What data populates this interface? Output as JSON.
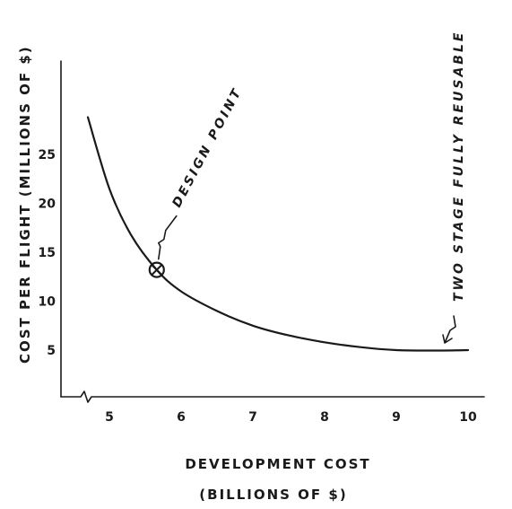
{
  "chart_data": {
    "type": "line",
    "xlabel_line1": "DEVELOPMENT COST",
    "xlabel_line2": "(BILLIONS OF $)",
    "ylabel": "COST PER FLIGHT (MILLIONS OF $)",
    "x_ticks": [
      "5",
      "6",
      "7",
      "8",
      "9",
      "10"
    ],
    "y_ticks": [
      "5",
      "10",
      "15",
      "20",
      "25"
    ],
    "xlim": [
      4.6,
      10.2
    ],
    "ylim": [
      0,
      30
    ],
    "x_axis_break": true,
    "grid": false,
    "series": [
      {
        "x": [
          4.7,
          5.0,
          5.3,
          5.66,
          6.0,
          6.5,
          7.0,
          7.5,
          8.0,
          8.5,
          9.0,
          9.5,
          10.0
        ],
        "y": [
          28.8,
          21.5,
          16.8,
          13.2,
          11.0,
          9.0,
          7.5,
          6.5,
          5.8,
          5.3,
          5.0,
          4.95,
          5.0
        ]
      }
    ],
    "annotations": [
      {
        "text": "DESIGN POINT",
        "x": 5.66,
        "y": 13.2,
        "marker": "circle-x"
      },
      {
        "text": "TWO STAGE FULLY REUSABLE",
        "x": 9.8,
        "y": 5.0,
        "marker": "arrow"
      }
    ]
  }
}
